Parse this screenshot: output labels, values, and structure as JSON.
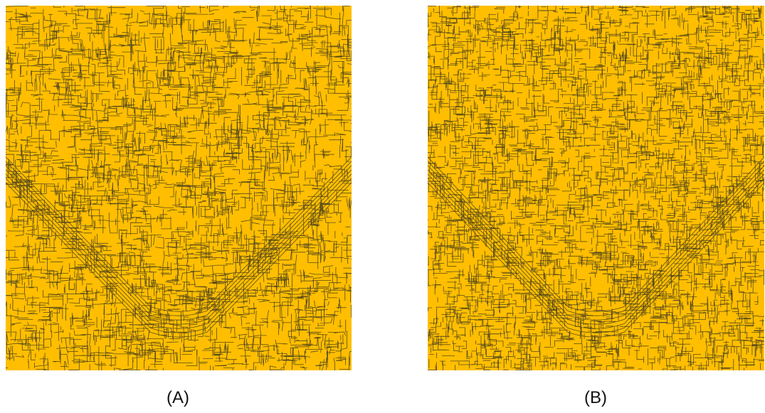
{
  "figure": {
    "panels": [
      {
        "id": "A",
        "caption": "(A)",
        "fill_color": "#FFBE00",
        "edge_color": "#3d3a1e",
        "texture": "irregular-segmentation-cells",
        "pattern": "v-shaped-band"
      },
      {
        "id": "B",
        "caption": "(B)",
        "fill_color": "#FFBE00",
        "edge_color": "#3d3a1e",
        "texture": "blocky-segmentation-cells",
        "pattern": "v-shaped-band"
      }
    ]
  }
}
